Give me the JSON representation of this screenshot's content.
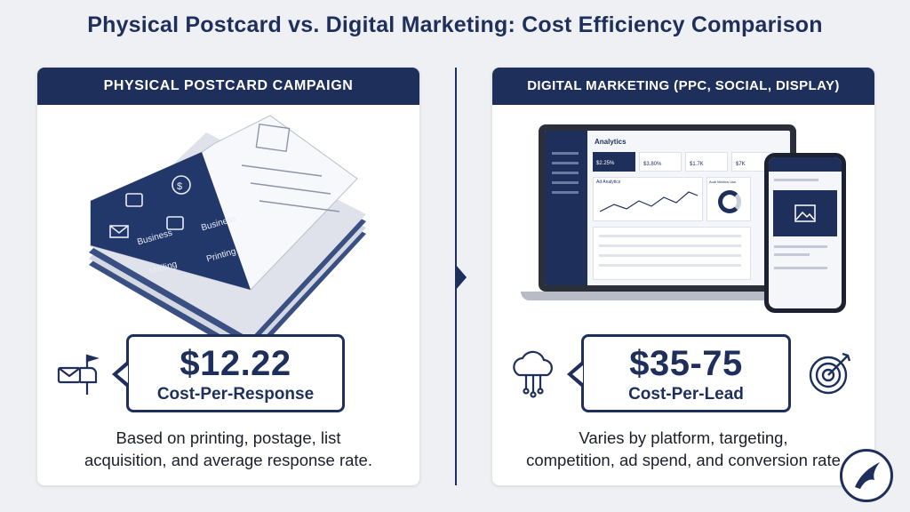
{
  "title": "Physical Postcard vs. Digital Marketing: Cost Efficiency Comparison",
  "left": {
    "header": "PHYSICAL POSTCARD CAMPAIGN",
    "postcard_labels": [
      "Business",
      "Business",
      "Mailing",
      "Printing"
    ],
    "value": "$12.22",
    "metric": "Cost-Per-Response",
    "caption_line1": "Based on printing, postage, list",
    "caption_line2": "acquisition, and average response rate."
  },
  "right": {
    "header": "DIGITAL MARKETING (PPC, SOCIAL, DISPLAY)",
    "dashboard": {
      "page_title": "Analytics",
      "kpis": [
        "$2.25%",
        "$3.80%",
        "$1.7K",
        "$7K"
      ],
      "chart_title": "Ad Analytics",
      "donut_title": "Audi Metrics Use"
    },
    "value": "$35-75",
    "metric": "Cost-Per-Lead",
    "caption_line1": "Varies by platform, targeting,",
    "caption_line2": "competition, ad spend, and conversion rate"
  },
  "colors": {
    "navy": "#1f2f5c",
    "panel_bg": "#ffffff",
    "page_bg": "#eef0f4"
  }
}
